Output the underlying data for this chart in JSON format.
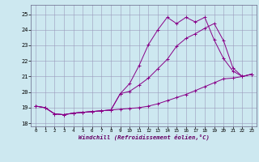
{
  "title": "",
  "xlabel": "Windchill (Refroidissement éolien,°C)",
  "ylabel": "",
  "background_color": "#cde8f0",
  "grid_color": "#9999bb",
  "line_color": "#880088",
  "xlim": [
    -0.5,
    23.5
  ],
  "ylim": [
    17.8,
    25.6
  ],
  "xticks": [
    0,
    1,
    2,
    3,
    4,
    5,
    6,
    7,
    8,
    9,
    10,
    11,
    12,
    13,
    14,
    15,
    16,
    17,
    18,
    19,
    20,
    21,
    22,
    23
  ],
  "yticks": [
    18,
    19,
    20,
    21,
    22,
    23,
    24,
    25
  ],
  "line1_x": [
    0,
    1,
    2,
    3,
    4,
    5,
    6,
    7,
    8,
    9,
    10,
    11,
    12,
    13,
    14,
    15,
    16,
    17,
    18,
    19,
    20,
    21,
    22,
    23
  ],
  "line1_y": [
    19.1,
    19.0,
    18.6,
    18.55,
    18.65,
    18.7,
    18.75,
    18.8,
    18.85,
    18.9,
    18.95,
    19.0,
    19.1,
    19.25,
    19.45,
    19.65,
    19.85,
    20.1,
    20.35,
    20.6,
    20.85,
    20.9,
    21.0,
    21.15
  ],
  "line2_x": [
    0,
    1,
    2,
    3,
    4,
    5,
    6,
    7,
    8,
    9,
    10,
    11,
    12,
    13,
    14,
    15,
    16,
    17,
    18,
    19,
    20,
    21,
    22,
    23
  ],
  "line2_y": [
    19.1,
    19.0,
    18.6,
    18.55,
    18.65,
    18.7,
    18.75,
    18.8,
    18.85,
    19.9,
    20.05,
    20.45,
    20.9,
    21.5,
    22.1,
    22.95,
    23.45,
    23.75,
    24.1,
    24.4,
    23.3,
    21.55,
    21.0,
    21.15
  ],
  "line3_x": [
    0,
    1,
    2,
    3,
    4,
    5,
    6,
    7,
    8,
    9,
    10,
    11,
    12,
    13,
    14,
    15,
    16,
    17,
    18,
    19,
    20,
    21,
    22,
    23
  ],
  "line3_y": [
    19.1,
    19.0,
    18.6,
    18.55,
    18.65,
    18.7,
    18.75,
    18.8,
    18.85,
    19.9,
    20.55,
    21.7,
    23.05,
    24.0,
    24.8,
    24.4,
    24.8,
    24.5,
    24.8,
    23.35,
    22.15,
    21.35,
    21.0,
    21.15
  ]
}
